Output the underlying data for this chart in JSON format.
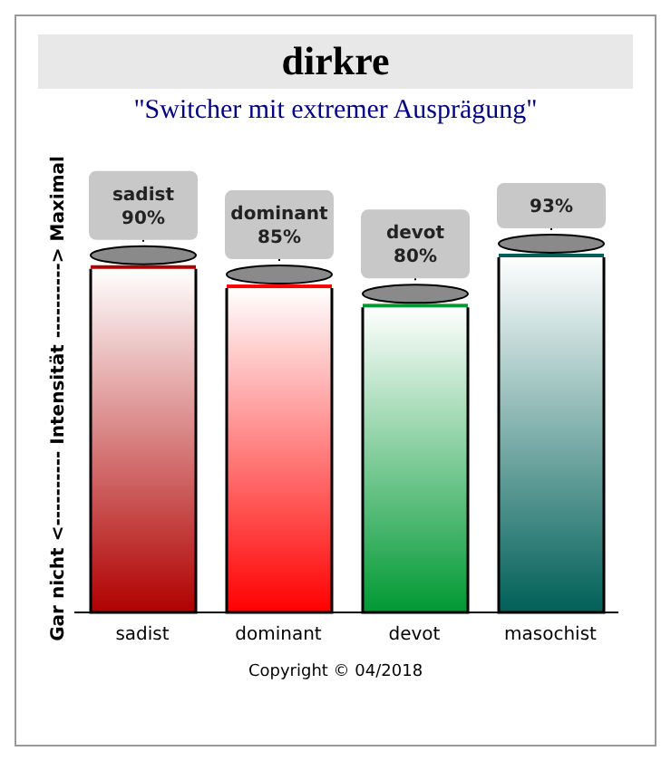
{
  "chart_data": {
    "type": "bar",
    "title": "dirkre",
    "subtitle": "\"Switcher mit extremer Ausprägung\"",
    "ylabel": "Gar nicht <---------- Intensität ----------> Maximal",
    "categories": [
      "sadist",
      "dominant",
      "devot",
      "masochist"
    ],
    "values": [
      90,
      85,
      80,
      93
    ],
    "colors": [
      "#b00000",
      "#ff0000",
      "#009933",
      "#006058"
    ],
    "value_labels": [
      "sadist 90%",
      "dominant 85%",
      "devot 80%",
      "93%"
    ],
    "annotations": [
      "Copyright © 04/2018"
    ],
    "grid": false,
    "legend": false
  }
}
